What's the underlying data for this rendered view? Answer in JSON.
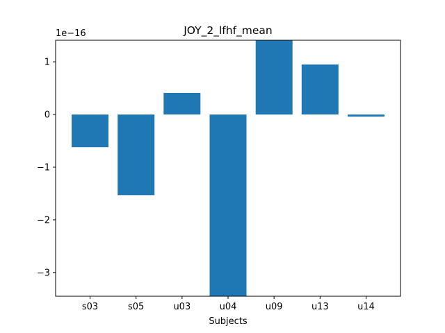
{
  "chart_data": {
    "type": "bar",
    "title": "JOY_2_lfhf_mean",
    "xlabel": "Subjects",
    "ylabel": "",
    "offset_text": "1e−16",
    "categories": [
      "s03",
      "s05",
      "u03",
      "u04",
      "u09",
      "u13",
      "u14"
    ],
    "values": [
      -0.62,
      -1.53,
      0.41,
      -3.5,
      1.41,
      0.95,
      -0.04
    ],
    "value_scale": "1e-16",
    "ylim": [
      -3.45,
      1.41
    ],
    "yticks": [
      -3,
      -2,
      -1,
      0,
      1
    ],
    "ytick_labels": [
      "−3",
      "−2",
      "−1",
      "0",
      "1"
    ],
    "bar_color": "#1f77b4",
    "grid": false,
    "legend": "none"
  }
}
